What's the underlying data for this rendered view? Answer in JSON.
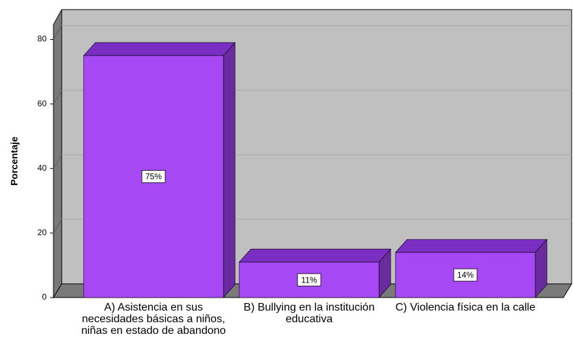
{
  "chart_data": {
    "type": "bar3d",
    "ylabel": "Porcentaje",
    "categories": [
      "A) Asistencia en sus necesidades básicas a niños, niñas en estado de abandono",
      "B) Bullying en la institución educativa",
      "C) Violencia física en la calle"
    ],
    "values": [
      75,
      11,
      14
    ],
    "value_labels": [
      "75%",
      "11%",
      "14%"
    ],
    "color": "#a648f4",
    "ylim": [
      0,
      85
    ],
    "yticks": [
      0,
      20,
      40,
      60,
      80
    ],
    "grid": true
  }
}
